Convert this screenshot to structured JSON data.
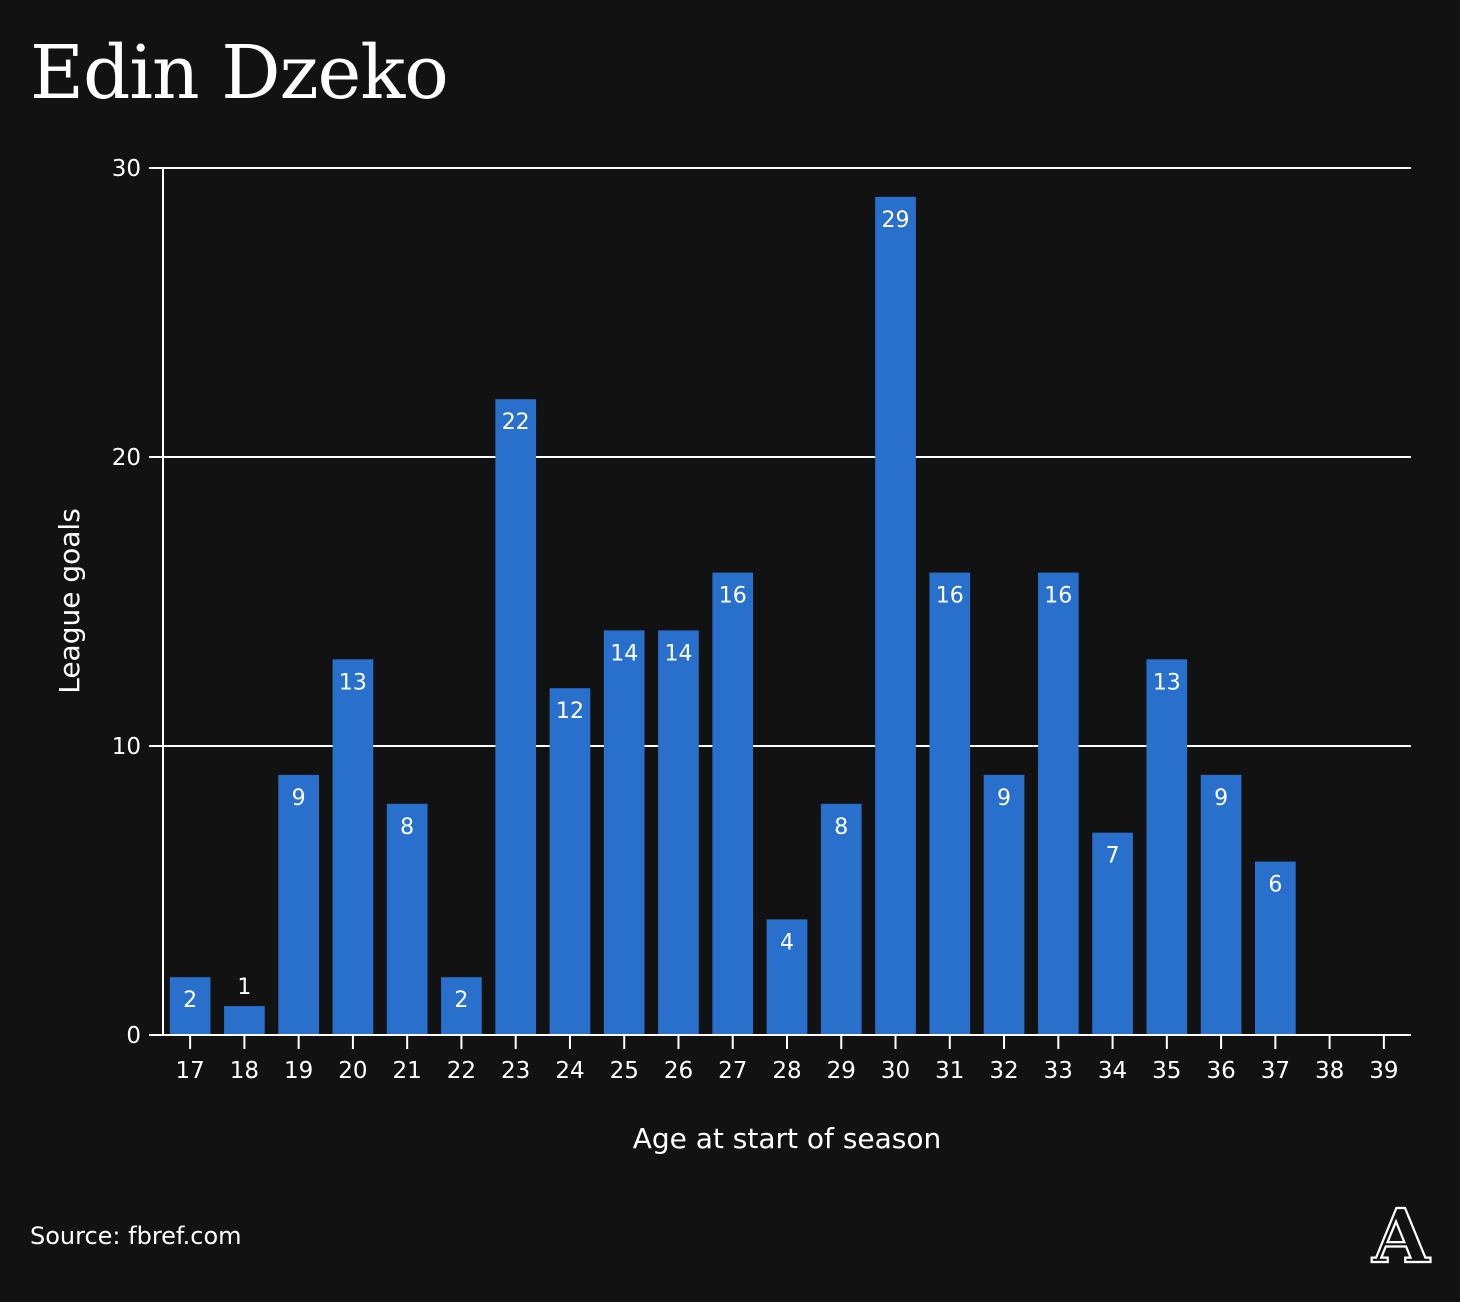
{
  "chart_data": {
    "type": "bar",
    "title": "Edin Dzeko",
    "xlabel": "Age at start of season",
    "ylabel": "League goals",
    "ylim": [
      0,
      30
    ],
    "yticks": [
      0,
      10,
      20,
      30
    ],
    "grid": true,
    "categories": [
      "17",
      "18",
      "19",
      "20",
      "21",
      "22",
      "23",
      "24",
      "25",
      "26",
      "27",
      "28",
      "29",
      "30",
      "31",
      "32",
      "33",
      "34",
      "35",
      "36",
      "37",
      "38",
      "39"
    ],
    "values": [
      2,
      1,
      9,
      13,
      8,
      2,
      22,
      12,
      14,
      14,
      16,
      4,
      8,
      29,
      16,
      9,
      16,
      7,
      13,
      9,
      6,
      null,
      null
    ],
    "bar_color": "#2870cc"
  },
  "footer": {
    "source": "Source: fbref.com",
    "logo_icon": "athletic-a-logo-icon",
    "logo_text": "A"
  }
}
